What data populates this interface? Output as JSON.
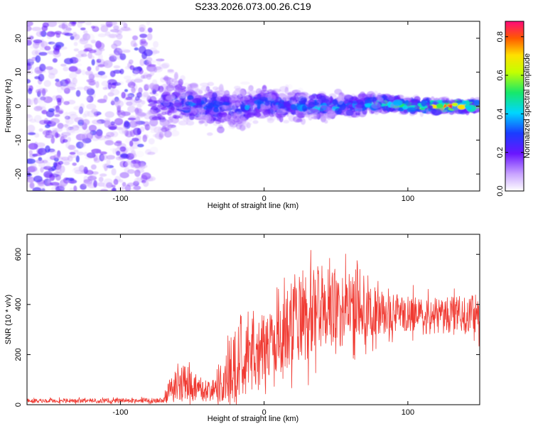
{
  "title": "S233.2026.073.00.26.C19",
  "chart_data": [
    {
      "type": "heatmap",
      "xlabel": "Height of straight line (km)",
      "ylabel": "Frequency (Hz)",
      "xlim": [
        -165,
        150
      ],
      "ylim": [
        -25,
        25
      ],
      "xticks": [
        -100,
        0,
        100
      ],
      "xtick_labels": [
        "-100",
        "0",
        "100"
      ],
      "yticks": [
        -20,
        -10,
        0,
        10,
        20
      ],
      "ytick_labels": [
        "-20",
        "-10",
        "0",
        "10",
        "20"
      ],
      "colorbar": {
        "label": "Normalized spectral amplitude",
        "range": [
          0.0,
          0.88
        ],
        "ticks": [
          0.0,
          0.2,
          0.4,
          0.6,
          0.8
        ],
        "tick_labels": [
          "0.0",
          "0.2",
          "0.4",
          "0.6",
          "0.8"
        ]
      },
      "ridge": [
        {
          "x": -80,
          "y": 0,
          "amp": 0.1
        },
        {
          "x": -60,
          "y": 1,
          "amp": 0.22
        },
        {
          "x": -40,
          "y": 0,
          "amp": 0.25
        },
        {
          "x": -20,
          "y": -1,
          "amp": 0.22
        },
        {
          "x": 0,
          "y": 1,
          "amp": 0.22
        },
        {
          "x": 20,
          "y": 0,
          "amp": 0.28
        },
        {
          "x": 40,
          "y": 0,
          "amp": 0.35
        },
        {
          "x": 60,
          "y": 0,
          "amp": 0.35
        },
        {
          "x": 80,
          "y": 1,
          "amp": 0.42
        },
        {
          "x": 100,
          "y": 0,
          "amp": 0.5
        },
        {
          "x": 120,
          "y": 0,
          "amp": 0.6
        },
        {
          "x": 130,
          "y": 0,
          "amp": 0.85
        },
        {
          "x": 150,
          "y": 0,
          "amp": 0.5
        }
      ],
      "spread_hz": [
        {
          "x": -165,
          "v": 25
        },
        {
          "x": -80,
          "v": 25
        },
        {
          "x": -60,
          "v": 9
        },
        {
          "x": -20,
          "v": 8
        },
        {
          "x": 20,
          "v": 6
        },
        {
          "x": 60,
          "v": 4
        },
        {
          "x": 100,
          "v": 3
        },
        {
          "x": 150,
          "v": 2
        }
      ]
    },
    {
      "type": "line",
      "xlabel": "Height of straight line (km)",
      "ylabel": "SNR (10 * v/v)",
      "xlim": [
        -165,
        150
      ],
      "ylim": [
        0,
        680
      ],
      "xticks": [
        -100,
        0,
        100
      ],
      "xtick_labels": [
        "-100",
        "0",
        "100"
      ],
      "yticks": [
        0,
        200,
        400,
        600
      ],
      "ytick_labels": [
        "0",
        "200",
        "400",
        "600"
      ],
      "series": [
        {
          "name": "SNR",
          "color": "#f03a32",
          "envelope": [
            {
              "x": -165,
              "mean": 15,
              "amp": 10
            },
            {
              "x": -70,
              "mean": 17,
              "amp": 12
            },
            {
              "x": -66,
              "mean": 60,
              "amp": 50
            },
            {
              "x": -55,
              "mean": 90,
              "amp": 90
            },
            {
              "x": -45,
              "mean": 60,
              "amp": 60
            },
            {
              "x": -35,
              "mean": 45,
              "amp": 45
            },
            {
              "x": -25,
              "mean": 120,
              "amp": 130
            },
            {
              "x": -10,
              "mean": 180,
              "amp": 180
            },
            {
              "x": 5,
              "mean": 240,
              "amp": 180
            },
            {
              "x": 20,
              "mean": 320,
              "amp": 200
            },
            {
              "x": 40,
              "mean": 380,
              "amp": 220
            },
            {
              "x": 60,
              "mean": 390,
              "amp": 180
            },
            {
              "x": 80,
              "mean": 370,
              "amp": 110
            },
            {
              "x": 110,
              "mean": 350,
              "amp": 90
            },
            {
              "x": 150,
              "mean": 360,
              "amp": 100
            }
          ]
        }
      ]
    }
  ]
}
